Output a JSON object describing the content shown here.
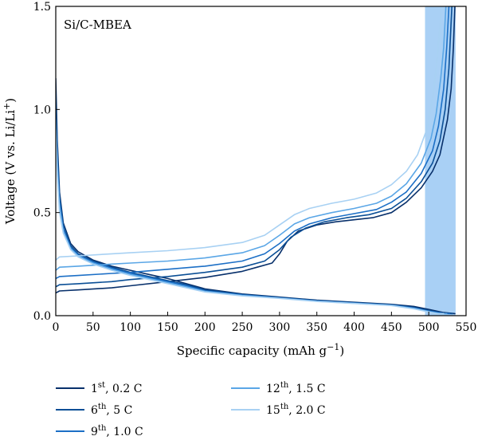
{
  "chart_data": {
    "type": "line",
    "annotation": "Si/C-MBEA",
    "xlabel": "Specific capacity (mAh g",
    "xlabel_sup": "−1",
    "xlabel_end": ")",
    "ylabel": "Voltage (V vs. Li/Li",
    "ylabel_sup": "+",
    "ylabel_end": ")",
    "xlim": [
      0,
      550
    ],
    "ylim": [
      0,
      1.5
    ],
    "xticks": [
      0,
      50,
      100,
      150,
      200,
      250,
      300,
      350,
      400,
      450,
      500,
      550
    ],
    "yticks": [
      0.0,
      0.5,
      1.0,
      1.5
    ],
    "ytick_labels": [
      "0.0",
      "0.5",
      "1.0",
      "1.5"
    ],
    "grid": false,
    "legend_position": "bottom",
    "shaded_region": {
      "x": [
        495,
        536
      ],
      "color": "#a9d0f5"
    },
    "series": [
      {
        "name": "1",
        "name_sup": "st",
        "name_rest": ", 0.2 C",
        "color": "#08306b",
        "discharge": [
          [
            0,
            1.15
          ],
          [
            2,
            0.85
          ],
          [
            5,
            0.6
          ],
          [
            10,
            0.45
          ],
          [
            20,
            0.35
          ],
          [
            30,
            0.31
          ],
          [
            50,
            0.27
          ],
          [
            75,
            0.24
          ],
          [
            100,
            0.22
          ],
          [
            125,
            0.2
          ],
          [
            150,
            0.18
          ],
          [
            175,
            0.155
          ],
          [
            200,
            0.13
          ],
          [
            250,
            0.105
          ],
          [
            300,
            0.09
          ],
          [
            350,
            0.075
          ],
          [
            400,
            0.065
          ],
          [
            450,
            0.055
          ],
          [
            480,
            0.045
          ],
          [
            500,
            0.03
          ],
          [
            520,
            0.015
          ],
          [
            535,
            0.01
          ]
        ],
        "charge": [
          [
            0,
            0.11
          ],
          [
            5,
            0.12
          ],
          [
            30,
            0.125
          ],
          [
            75,
            0.135
          ],
          [
            100,
            0.145
          ],
          [
            150,
            0.165
          ],
          [
            200,
            0.185
          ],
          [
            250,
            0.215
          ],
          [
            270,
            0.235
          ],
          [
            290,
            0.255
          ],
          [
            300,
            0.3
          ],
          [
            310,
            0.36
          ],
          [
            325,
            0.41
          ],
          [
            350,
            0.44
          ],
          [
            375,
            0.455
          ],
          [
            400,
            0.465
          ],
          [
            425,
            0.475
          ],
          [
            450,
            0.5
          ],
          [
            470,
            0.55
          ],
          [
            490,
            0.62
          ],
          [
            505,
            0.7
          ],
          [
            515,
            0.78
          ],
          [
            525,
            0.95
          ],
          [
            530,
            1.1
          ],
          [
            533,
            1.3
          ],
          [
            535,
            1.5
          ]
        ]
      },
      {
        "name": "6",
        "name_sup": "th",
        "name_rest": ", 5 C",
        "color": "#0b4f96",
        "discharge": [
          [
            0,
            1.08
          ],
          [
            2,
            0.8
          ],
          [
            5,
            0.58
          ],
          [
            10,
            0.44
          ],
          [
            20,
            0.34
          ],
          [
            30,
            0.3
          ],
          [
            50,
            0.265
          ],
          [
            75,
            0.235
          ],
          [
            100,
            0.21
          ],
          [
            125,
            0.19
          ],
          [
            150,
            0.17
          ],
          [
            175,
            0.15
          ],
          [
            200,
            0.125
          ],
          [
            250,
            0.103
          ],
          [
            300,
            0.088
          ],
          [
            350,
            0.073
          ],
          [
            400,
            0.063
          ],
          [
            450,
            0.053
          ],
          [
            480,
            0.04
          ],
          [
            500,
            0.025
          ],
          [
            520,
            0.012
          ],
          [
            532,
            0.01
          ]
        ],
        "charge": [
          [
            0,
            0.14
          ],
          [
            5,
            0.15
          ],
          [
            30,
            0.155
          ],
          [
            75,
            0.165
          ],
          [
            100,
            0.175
          ],
          [
            150,
            0.19
          ],
          [
            200,
            0.21
          ],
          [
            250,
            0.235
          ],
          [
            280,
            0.265
          ],
          [
            300,
            0.32
          ],
          [
            315,
            0.38
          ],
          [
            335,
            0.425
          ],
          [
            360,
            0.455
          ],
          [
            390,
            0.475
          ],
          [
            420,
            0.49
          ],
          [
            450,
            0.52
          ],
          [
            470,
            0.57
          ],
          [
            490,
            0.65
          ],
          [
            505,
            0.74
          ],
          [
            515,
            0.85
          ],
          [
            522,
            1.0
          ],
          [
            527,
            1.2
          ],
          [
            531,
            1.5
          ]
        ]
      },
      {
        "name": "9",
        "name_sup": "th",
        "name_rest": ", 1.0 C",
        "color": "#1c6fc6",
        "discharge": [
          [
            0,
            1.0
          ],
          [
            2,
            0.75
          ],
          [
            5,
            0.55
          ],
          [
            10,
            0.42
          ],
          [
            20,
            0.33
          ],
          [
            30,
            0.295
          ],
          [
            50,
            0.26
          ],
          [
            75,
            0.23
          ],
          [
            100,
            0.205
          ],
          [
            125,
            0.185
          ],
          [
            150,
            0.165
          ],
          [
            175,
            0.145
          ],
          [
            200,
            0.12
          ],
          [
            250,
            0.1
          ],
          [
            300,
            0.086
          ],
          [
            350,
            0.071
          ],
          [
            400,
            0.061
          ],
          [
            450,
            0.051
          ],
          [
            480,
            0.037
          ],
          [
            500,
            0.022
          ],
          [
            520,
            0.011
          ],
          [
            528,
            0.01
          ]
        ],
        "charge": [
          [
            0,
            0.18
          ],
          [
            5,
            0.19
          ],
          [
            30,
            0.195
          ],
          [
            75,
            0.205
          ],
          [
            100,
            0.21
          ],
          [
            150,
            0.225
          ],
          [
            200,
            0.24
          ],
          [
            250,
            0.265
          ],
          [
            280,
            0.3
          ],
          [
            300,
            0.35
          ],
          [
            320,
            0.41
          ],
          [
            340,
            0.445
          ],
          [
            370,
            0.475
          ],
          [
            400,
            0.495
          ],
          [
            430,
            0.515
          ],
          [
            450,
            0.55
          ],
          [
            470,
            0.6
          ],
          [
            490,
            0.69
          ],
          [
            505,
            0.8
          ],
          [
            513,
            0.92
          ],
          [
            520,
            1.1
          ],
          [
            524,
            1.3
          ],
          [
            527,
            1.5
          ]
        ]
      },
      {
        "name": "12",
        "name_sup": "th",
        "name_rest": ", 1.5 C",
        "color": "#5aa6e6",
        "discharge": [
          [
            0,
            0.95
          ],
          [
            2,
            0.72
          ],
          [
            5,
            0.53
          ],
          [
            10,
            0.41
          ],
          [
            20,
            0.325
          ],
          [
            30,
            0.29
          ],
          [
            50,
            0.255
          ],
          [
            75,
            0.225
          ],
          [
            100,
            0.2
          ],
          [
            125,
            0.18
          ],
          [
            150,
            0.16
          ],
          [
            175,
            0.14
          ],
          [
            200,
            0.118
          ],
          [
            250,
            0.098
          ],
          [
            300,
            0.085
          ],
          [
            350,
            0.07
          ],
          [
            400,
            0.06
          ],
          [
            450,
            0.05
          ],
          [
            480,
            0.035
          ],
          [
            500,
            0.02
          ],
          [
            515,
            0.01
          ],
          [
            524,
            0.01
          ]
        ],
        "charge": [
          [
            0,
            0.22
          ],
          [
            5,
            0.235
          ],
          [
            30,
            0.24
          ],
          [
            75,
            0.25
          ],
          [
            100,
            0.255
          ],
          [
            150,
            0.265
          ],
          [
            200,
            0.28
          ],
          [
            250,
            0.305
          ],
          [
            280,
            0.34
          ],
          [
            300,
            0.39
          ],
          [
            320,
            0.445
          ],
          [
            340,
            0.475
          ],
          [
            370,
            0.5
          ],
          [
            400,
            0.52
          ],
          [
            430,
            0.545
          ],
          [
            450,
            0.58
          ],
          [
            470,
            0.64
          ],
          [
            490,
            0.74
          ],
          [
            503,
            0.86
          ],
          [
            510,
            0.98
          ],
          [
            516,
            1.15
          ],
          [
            520,
            1.3
          ],
          [
            523,
            1.5
          ]
        ]
      },
      {
        "name": "15",
        "name_sup": "th",
        "name_rest": ", 2.0 C",
        "color": "#a8d1f3",
        "discharge": [
          [
            0,
            0.9
          ],
          [
            2,
            0.68
          ],
          [
            5,
            0.5
          ],
          [
            10,
            0.4
          ],
          [
            20,
            0.32
          ],
          [
            30,
            0.285
          ],
          [
            50,
            0.25
          ],
          [
            75,
            0.22
          ],
          [
            100,
            0.195
          ],
          [
            125,
            0.175
          ],
          [
            150,
            0.155
          ],
          [
            175,
            0.135
          ],
          [
            200,
            0.115
          ],
          [
            250,
            0.096
          ],
          [
            300,
            0.084
          ],
          [
            350,
            0.069
          ],
          [
            400,
            0.059
          ],
          [
            450,
            0.049
          ],
          [
            480,
            0.033
          ],
          [
            500,
            0.018
          ],
          [
            512,
            0.01
          ],
          [
            520,
            0.01
          ]
        ],
        "charge": [
          [
            0,
            0.27
          ],
          [
            5,
            0.285
          ],
          [
            30,
            0.29
          ],
          [
            75,
            0.3
          ],
          [
            100,
            0.305
          ],
          [
            150,
            0.315
          ],
          [
            200,
            0.33
          ],
          [
            250,
            0.355
          ],
          [
            280,
            0.39
          ],
          [
            300,
            0.44
          ],
          [
            320,
            0.49
          ],
          [
            340,
            0.52
          ],
          [
            370,
            0.545
          ],
          [
            400,
            0.565
          ],
          [
            430,
            0.595
          ],
          [
            450,
            0.635
          ],
          [
            470,
            0.7
          ],
          [
            485,
            0.78
          ],
          [
            497,
            0.9
          ],
          [
            505,
            1.05
          ],
          [
            510,
            1.2
          ],
          [
            515,
            1.4
          ],
          [
            517,
            1.5
          ]
        ]
      }
    ]
  }
}
